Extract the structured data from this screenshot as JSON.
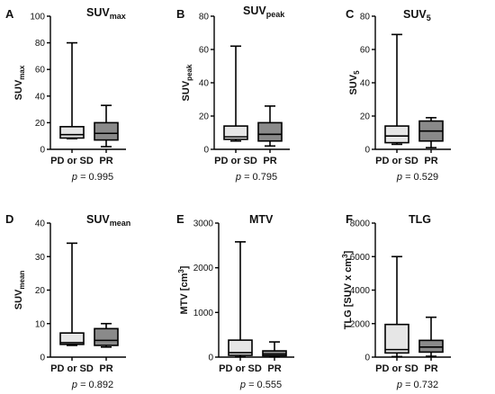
{
  "colors": {
    "pd_sd_fill": "#e6e6e6",
    "pr_fill": "#8a8a8a",
    "stroke": "#000000"
  },
  "chart_data": [
    {
      "type": "box",
      "panel": "A",
      "title": "SUV",
      "title_sub": "max",
      "ylabel": "SUV",
      "ylabel_sub": "max",
      "ylabel_sup": "",
      "ylabel_tail": "",
      "ylim": [
        0,
        100
      ],
      "yticks": [
        0,
        20,
        40,
        60,
        80,
        100
      ],
      "categories": [
        "PD or SD",
        "PR"
      ],
      "boxes": [
        {
          "min": 8,
          "q1": 8.5,
          "median": 11,
          "q3": 17,
          "max": 80
        },
        {
          "min": 2,
          "q1": 7,
          "median": 12,
          "q3": 20,
          "max": 33
        }
      ],
      "p_prefix": "p",
      "p_value": "= 0.995"
    },
    {
      "type": "box",
      "panel": "B",
      "title": "SUV",
      "title_sub": "peak",
      "ylabel": "SUV",
      "ylabel_sub": "peak",
      "ylabel_sup": "",
      "ylabel_tail": "",
      "ylim": [
        0,
        80
      ],
      "yticks": [
        0,
        20,
        40,
        60,
        80
      ],
      "categories": [
        "PD or SD",
        "PR"
      ],
      "boxes": [
        {
          "min": 5,
          "q1": 6,
          "median": 7.5,
          "q3": 14,
          "max": 62
        },
        {
          "min": 2,
          "q1": 5,
          "median": 9,
          "q3": 16,
          "max": 26
        }
      ],
      "p_prefix": "p",
      "p_value": "= 0.795"
    },
    {
      "type": "box",
      "panel": "C",
      "title": "SUV",
      "title_sub": "5",
      "ylabel": "SUV",
      "ylabel_sub": "5",
      "ylabel_sup": "",
      "ylabel_tail": "",
      "ylim": [
        0,
        80
      ],
      "yticks": [
        0,
        20,
        40,
        60,
        80
      ],
      "categories": [
        "PD or SD",
        "PR"
      ],
      "boxes": [
        {
          "min": 3,
          "q1": 4,
          "median": 8,
          "q3": 14,
          "max": 69
        },
        {
          "min": 1,
          "q1": 5,
          "median": 11,
          "q3": 17,
          "max": 19
        }
      ],
      "p_prefix": "p",
      "p_value": "= 0.529"
    },
    {
      "type": "box",
      "panel": "D",
      "title": "SUV",
      "title_sub": "mean",
      "ylabel": "SUV",
      "ylabel_sub": "mean",
      "ylabel_sup": "",
      "ylabel_tail": "",
      "ylim": [
        0,
        40
      ],
      "yticks": [
        0,
        10,
        20,
        30,
        40
      ],
      "categories": [
        "PD or SD",
        "PR"
      ],
      "boxes": [
        {
          "min": 3.5,
          "q1": 3.8,
          "median": 4.3,
          "q3": 7.2,
          "max": 34
        },
        {
          "min": 3,
          "q1": 3.5,
          "median": 5,
          "q3": 8.5,
          "max": 10
        }
      ],
      "p_prefix": "p",
      "p_value": "= 0.892"
    },
    {
      "type": "box",
      "panel": "E",
      "title": "MTV",
      "title_sub": "",
      "ylabel": "MTV [cm",
      "ylabel_sub": "",
      "ylabel_sup": "3",
      "ylabel_tail": "]",
      "ylim": [
        0,
        3000
      ],
      "yticks": [
        0,
        1000,
        2000,
        3000
      ],
      "categories": [
        "PD or SD",
        "PR"
      ],
      "boxes": [
        {
          "min": 5,
          "q1": 40,
          "median": 100,
          "q3": 380,
          "max": 2580
        },
        {
          "min": 5,
          "q1": 30,
          "median": 70,
          "q3": 140,
          "max": 340
        }
      ],
      "p_prefix": "p",
      "p_value": "= 0.555"
    },
    {
      "type": "box",
      "panel": "F",
      "title": "TLG",
      "title_sub": "",
      "ylabel": "TLG [SUV x cm",
      "ylabel_sub": "",
      "ylabel_sup": "3",
      "ylabel_tail": "]",
      "ylim": [
        0,
        8000
      ],
      "yticks": [
        0,
        2000,
        4000,
        6000,
        8000
      ],
      "categories": [
        "PD or SD",
        "PR"
      ],
      "boxes": [
        {
          "min": 30,
          "q1": 250,
          "median": 450,
          "q3": 1950,
          "max": 6000
        },
        {
          "min": 50,
          "q1": 300,
          "median": 600,
          "q3": 1000,
          "max": 2380
        }
      ],
      "p_prefix": "p",
      "p_value": "= 0.732"
    }
  ]
}
